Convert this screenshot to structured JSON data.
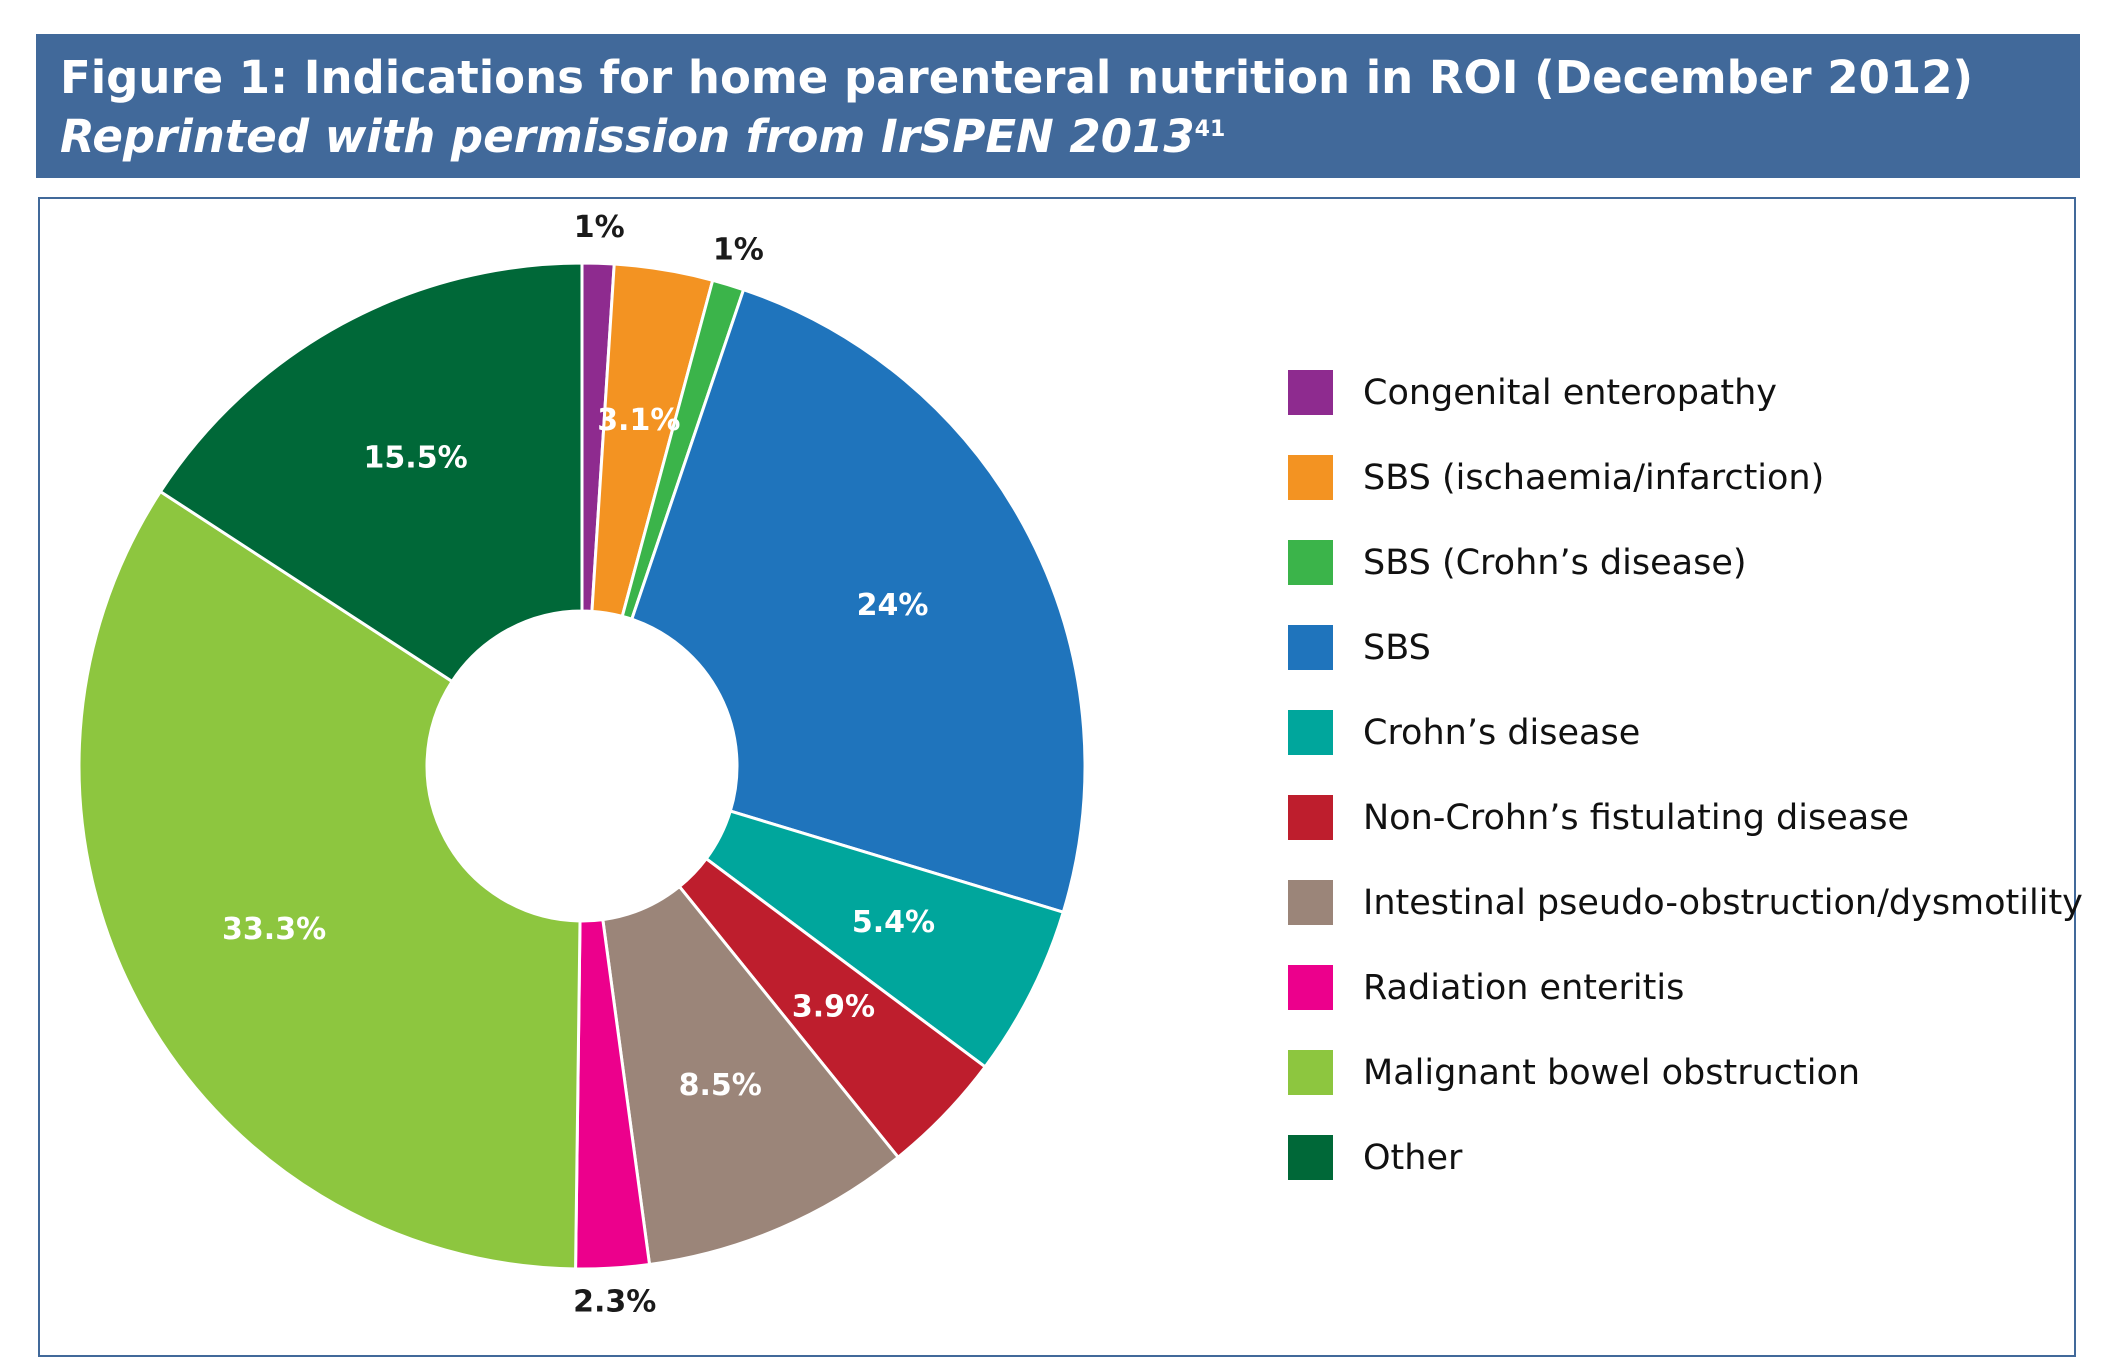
{
  "header": {
    "title_bold": "Figure 1: Indications for home parenteral nutrition in ROI (December 2012) ",
    "title_italic": "Reprinted with permission from IrSPEN 2013",
    "superscript": "41"
  },
  "chart_data": {
    "type": "pie",
    "donut": true,
    "legend_position": "right",
    "start_angle_deg": 0,
    "direction": "clockwise",
    "slices": [
      {
        "name": "Congenital enteropathy",
        "value": 1,
        "label": "1%",
        "label_outside": true,
        "label_color": "#1a1a1a",
        "color": "#8e2b8f"
      },
      {
        "name": "SBS (ischaemia/infarction)",
        "value": 3.1,
        "label": "3.1%",
        "label_outside": false,
        "label_color": "#ffffff",
        "color": "#f39322"
      },
      {
        "name": "SBS (Crohn’s disease)",
        "value": 1,
        "label": "1%",
        "label_outside": true,
        "label_color": "#1a1a1a",
        "color": "#3bb44a"
      },
      {
        "name": "SBS",
        "value": 24,
        "label": "24%",
        "label_outside": false,
        "label_color": "#ffffff",
        "color": "#1f74bc"
      },
      {
        "name": "Crohn’s disease",
        "value": 5.4,
        "label": "5.4%",
        "label_outside": false,
        "label_color": "#ffffff",
        "color": "#00a69c"
      },
      {
        "name": "Non-Crohn’s fistulating disease",
        "value": 3.9,
        "label": "3.9%",
        "label_outside": false,
        "label_color": "#ffffff",
        "color": "#be1e2d"
      },
      {
        "name": "Intestinal pseudo-obstruction/dysmotility",
        "value": 8.5,
        "label": "8.5%",
        "label_outside": false,
        "label_color": "#ffffff",
        "color": "#9b8579"
      },
      {
        "name": "Radiation enteritis",
        "value": 2.3,
        "label": "2.3%",
        "label_outside": true,
        "label_color": "#1a1a1a",
        "color": "#ec008c"
      },
      {
        "name": "Malignant bowel obstruction",
        "value": 33.3,
        "label": "33.3%",
        "label_outside": false,
        "label_color": "#ffffff",
        "color": "#8dc63f"
      },
      {
        "name": "Other",
        "value": 15.5,
        "label": "15.5%",
        "label_outside": false,
        "label_color": "#ffffff",
        "color": "#006838"
      }
    ]
  }
}
